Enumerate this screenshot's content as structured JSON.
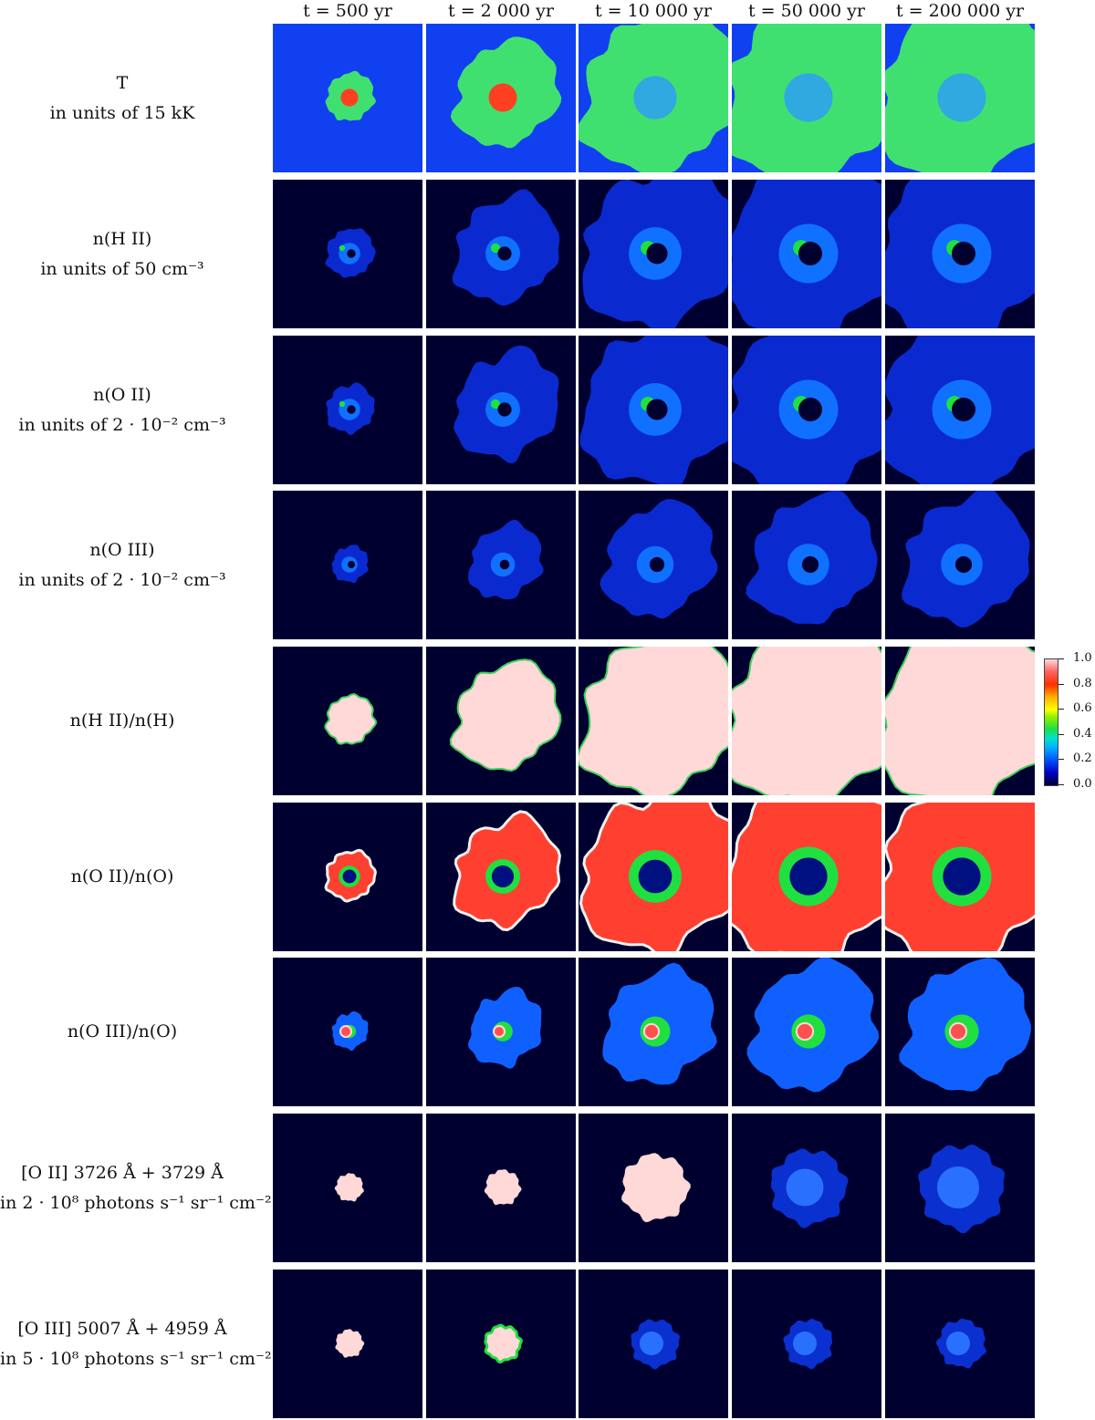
{
  "columns": [
    {
      "label": "t = 500 yr"
    },
    {
      "label": "t = 2 000 yr"
    },
    {
      "label": "t = 10 000 yr"
    },
    {
      "label": "t = 50 000 yr"
    },
    {
      "label": "t = 200 000 yr"
    }
  ],
  "rows": [
    {
      "line1": "T",
      "line2": "in units of 15 kK",
      "quantity": "temperature"
    },
    {
      "line1": "n(H II)",
      "line2": "in units of 50 cm⁻³",
      "quantity": "n_HII"
    },
    {
      "line1": "n(O II)",
      "line2": "in units of 2 · 10⁻² cm⁻³",
      "quantity": "n_OII"
    },
    {
      "line1": "n(O III)",
      "line2": "in units of 2 · 10⁻² cm⁻³",
      "quantity": "n_OIII"
    },
    {
      "line1": "n(H II)/n(H)",
      "line2": "",
      "quantity": "x_HII"
    },
    {
      "line1": "n(O II)/n(O)",
      "line2": "",
      "quantity": "x_OII"
    },
    {
      "line1": "n(O III)/n(O)",
      "line2": "",
      "quantity": "x_OIII"
    },
    {
      "line1": "[O II] 3726 Å + 3729 Å",
      "line2": "in 2 · 10⁸ photons s⁻¹ sr⁻¹ cm⁻²",
      "quantity": "em_OII"
    },
    {
      "line1": "[O III] 5007 Å + 4959 Å",
      "line2": "in 5 · 10⁸ photons s⁻¹ sr⁻¹ cm⁻²",
      "quantity": "em_OIII"
    }
  ],
  "colorbar": {
    "ticks": [
      "1.0",
      "0.8",
      "0.6",
      "0.4",
      "0.2",
      "0.0"
    ],
    "range": [
      0.0,
      1.0
    ]
  },
  "colors": {
    "background_map": "#000030",
    "temperature_bg": "#1040f0",
    "low": "#0040ff",
    "mid": "#20e040",
    "high": "#ff3000",
    "max": "#ffd8d8"
  }
}
